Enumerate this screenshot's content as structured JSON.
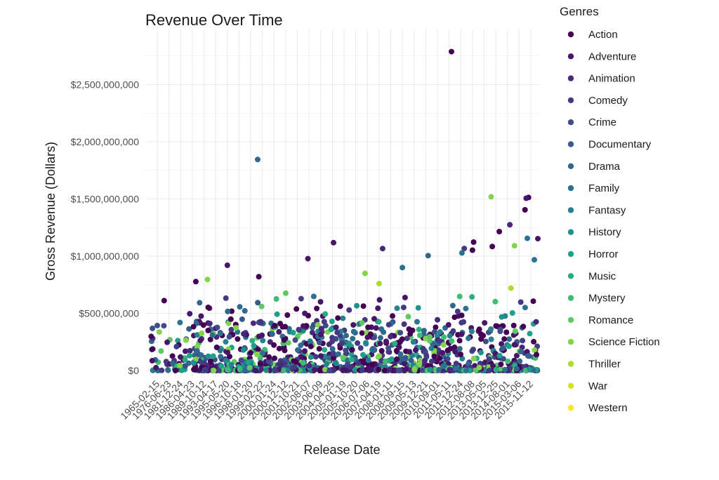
{
  "chart_data": {
    "type": "scatter",
    "title": "Revenue Over Time",
    "xlabel": "Release Date",
    "ylabel": "Gross Revenue (Dollars)",
    "ylim": [
      0,
      2800000000
    ],
    "y_ticks": [
      {
        "value": 0,
        "label": "$0"
      },
      {
        "value": 500000000,
        "label": "$500,000,000"
      },
      {
        "value": 1000000000,
        "label": "$1,000,000,000"
      },
      {
        "value": 1500000000,
        "label": "$1,500,000,000"
      },
      {
        "value": 2000000000,
        "label": "$2,000,000,000"
      },
      {
        "value": 2500000000,
        "label": "$2,500,000,000"
      }
    ],
    "x_tick_labels": [
      "1965-02-15",
      "1976-06-23",
      "1981-12-24",
      "1986-04-23",
      "1989-10-12",
      "1993-04-17",
      "1995-05-20",
      "1996-10-18",
      "1998-01-20",
      "1999-02-22",
      "2000-01-24",
      "2000-12-12",
      "2001-10-21",
      "2002-08-07",
      "2003-06-09",
      "2004-04-25",
      "2005-01-19",
      "2005-10-20",
      "2006-07-06",
      "2007-04-19",
      "2008-01-11",
      "2008-09-15",
      "2009-05-13",
      "2009-12-21",
      "2010-09-01",
      "2011-05-11",
      "2011-12-24",
      "2012-08-08",
      "2013-05-05",
      "2013-12-25",
      "2014-08-01",
      "2015-03-06",
      "2015-11-12"
    ],
    "grid": true,
    "legend": {
      "title": "Genres",
      "position": "right",
      "entries": [
        {
          "name": "Action",
          "color": "#440154"
        },
        {
          "name": "Adventure",
          "color": "#481668"
        },
        {
          "name": "Animation",
          "color": "#482878"
        },
        {
          "name": "Comedy",
          "color": "#443a83"
        },
        {
          "name": "Crime",
          "color": "#3e4c8a"
        },
        {
          "name": "Documentary",
          "color": "#375b8d"
        },
        {
          "name": "Drama",
          "color": "#31688e"
        },
        {
          "name": "Family",
          "color": "#2c728e"
        },
        {
          "name": "Fantasy",
          "color": "#26828e"
        },
        {
          "name": "History",
          "color": "#21918c"
        },
        {
          "name": "Horror",
          "color": "#1fa088"
        },
        {
          "name": "Music",
          "color": "#28ae80"
        },
        {
          "name": "Mystery",
          "color": "#3fbc73"
        },
        {
          "name": "Romance",
          "color": "#5ec962"
        },
        {
          "name": "Science Fiction",
          "color": "#84d44b"
        },
        {
          "name": "Thriller",
          "color": "#addc30"
        },
        {
          "name": "War",
          "color": "#d8e219"
        },
        {
          "name": "Western",
          "color": "#fde725"
        }
      ]
    },
    "highlighted_points": [
      {
        "x_index": 25.2,
        "y": 2788000000,
        "genre": "Action"
      },
      {
        "x_index": 8.6,
        "y": 1845000000,
        "genre": "Drama"
      },
      {
        "x_index": 28.6,
        "y": 1519000000,
        "genre": "Science Fiction"
      },
      {
        "x_index": 31.8,
        "y": 1513000000,
        "genre": "Action"
      },
      {
        "x_index": 31.6,
        "y": 1506000000,
        "genre": "Adventure"
      },
      {
        "x_index": 31.5,
        "y": 1405000000,
        "genre": "Action"
      },
      {
        "x_index": 30.2,
        "y": 1274000000,
        "genre": "Animation"
      },
      {
        "x_index": 29.3,
        "y": 1215000000,
        "genre": "Action"
      },
      {
        "x_index": 31.7,
        "y": 1156000000,
        "genre": "Family"
      },
      {
        "x_index": 32.6,
        "y": 1153000000,
        "genre": "Adventure"
      },
      {
        "x_index": 27.1,
        "y": 1123000000,
        "genre": "Action"
      },
      {
        "x_index": 15.1,
        "y": 1118000000,
        "genre": "Adventure"
      },
      {
        "x_index": 30.6,
        "y": 1091000000,
        "genre": "Science Fiction"
      },
      {
        "x_index": 28.7,
        "y": 1084000000,
        "genre": "Action"
      },
      {
        "x_index": 19.3,
        "y": 1066000000,
        "genre": "Animation"
      },
      {
        "x_index": 26.3,
        "y": 1067000000,
        "genre": "Comedy"
      },
      {
        "x_index": 26.1,
        "y": 1028000000,
        "genre": "Family"
      },
      {
        "x_index": 23.2,
        "y": 1004000000,
        "genre": "Drama"
      },
      {
        "x_index": 12.9,
        "y": 978000000,
        "genre": "Adventure"
      },
      {
        "x_index": 32.3,
        "y": 968000000,
        "genre": "Family"
      },
      {
        "x_index": 3.3,
        "y": 777000000,
        "genre": "Action"
      },
      {
        "x_index": 4.3,
        "y": 796000000,
        "genre": "Science Fiction"
      },
      {
        "x_index": 11.0,
        "y": 676000000,
        "genre": "Romance"
      },
      {
        "x_index": 17.8,
        "y": 850000000,
        "genre": "Science Fiction"
      },
      {
        "x_index": 19.0,
        "y": 760000000,
        "genre": "Thriller"
      },
      {
        "x_index": 8.7,
        "y": 820000000,
        "genre": "Action"
      },
      {
        "x_index": 30.3,
        "y": 720000000,
        "genre": "Thriller"
      },
      {
        "x_index": 21.0,
        "y": 900000000,
        "genre": "Family"
      },
      {
        "x_index": 6.0,
        "y": 920000000,
        "genre": "Adventure"
      },
      {
        "x_index": 27.0,
        "y": 1052000000,
        "genre": "Action"
      }
    ]
  }
}
